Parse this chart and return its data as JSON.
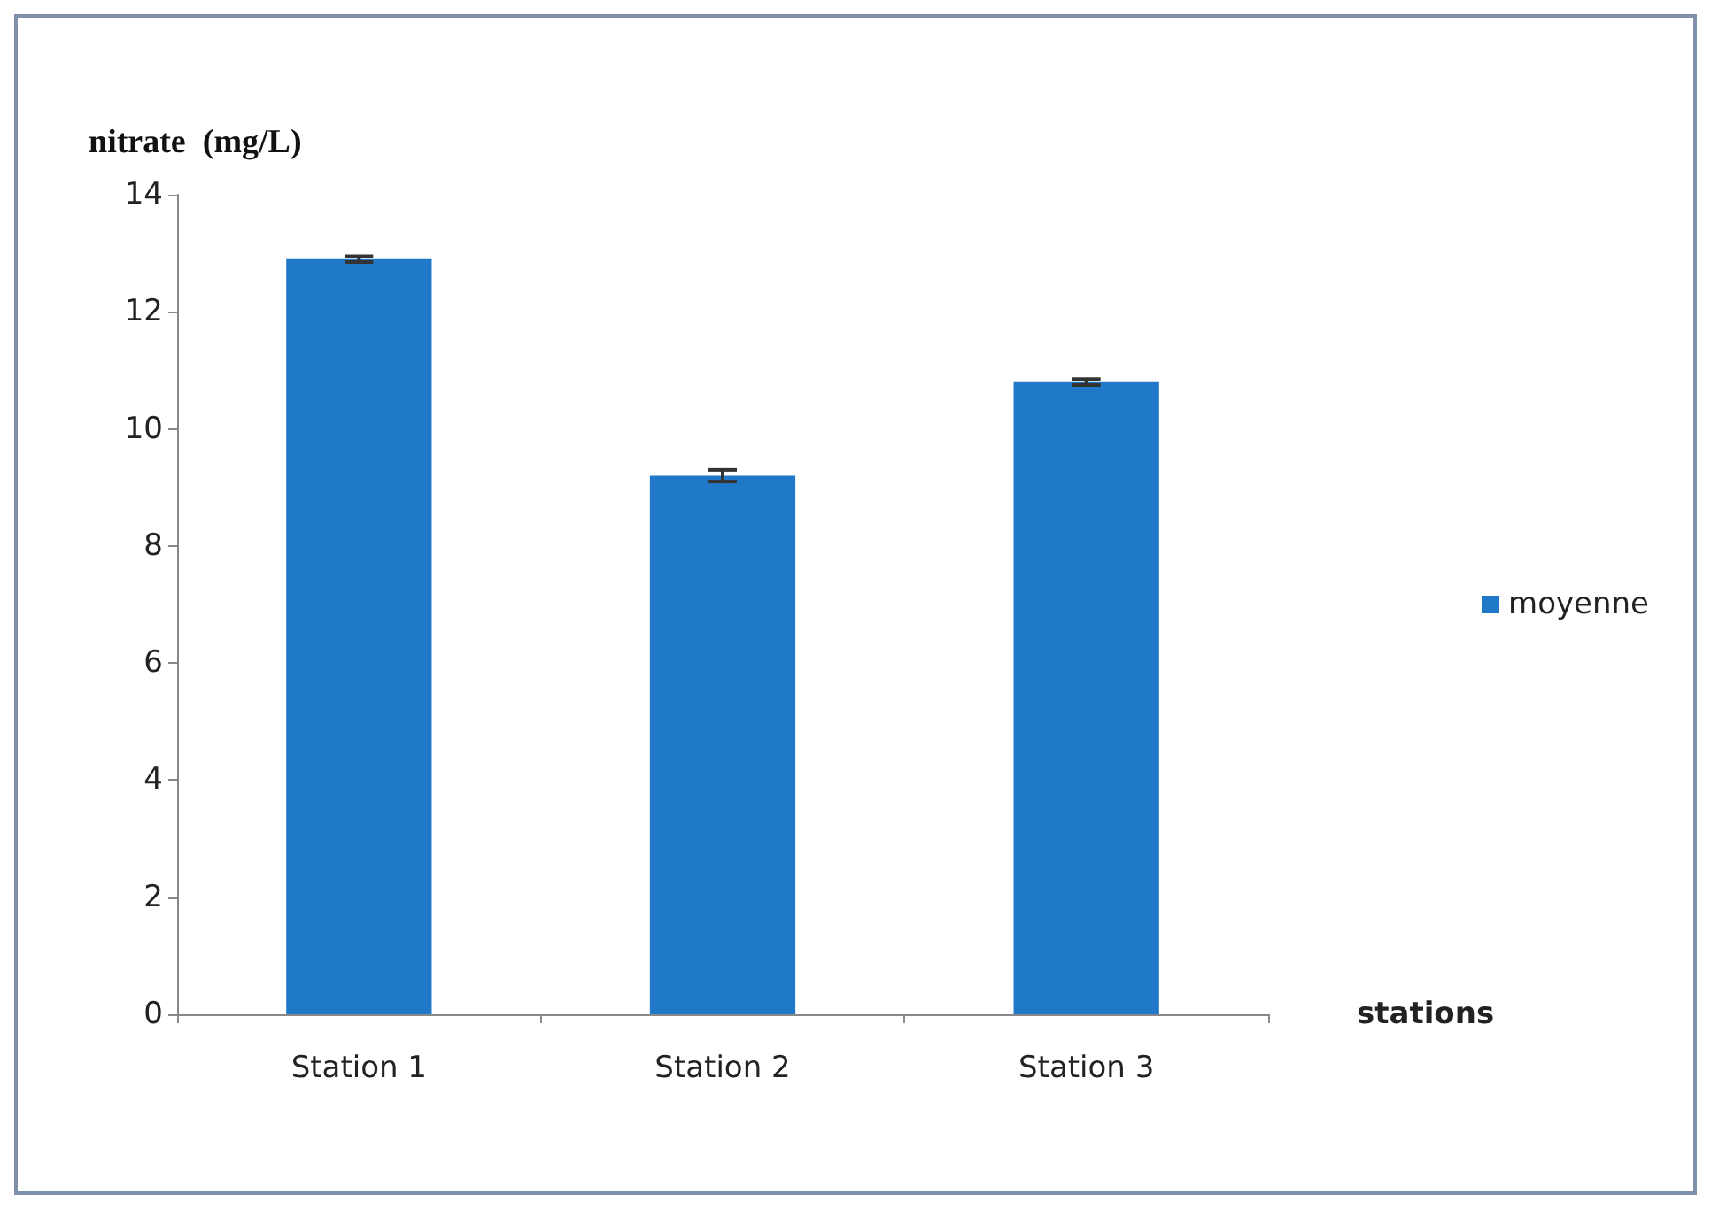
{
  "chart_data": {
    "type": "bar",
    "ylabel": "nitrate  (mg/L)",
    "xlabel": "stations",
    "categories": [
      "Station 1",
      "Station 2",
      "Station 3"
    ],
    "series": [
      {
        "name": "moyenne",
        "color": "#1f78c8",
        "values": [
          12.9,
          9.2,
          10.8
        ],
        "errors": [
          0.05,
          0.1,
          0.05
        ]
      }
    ],
    "ylim": [
      0,
      14
    ],
    "yticks": [
      0,
      2,
      4,
      6,
      8,
      10,
      12,
      14
    ],
    "grid": false,
    "legend": "right"
  }
}
